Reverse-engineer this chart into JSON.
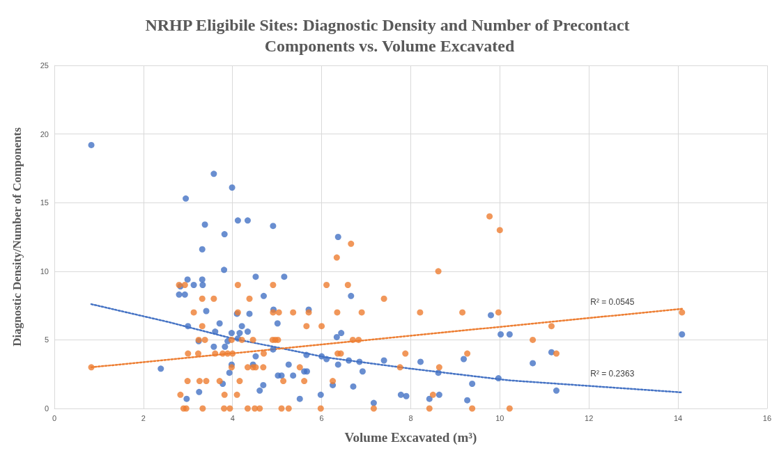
{
  "chart_data": {
    "type": "scatter",
    "title": "NRHP Eligibile Sites: Diagnostic Density and Number of Precontact Components vs. Volume Excavated",
    "xlabel": "Volume Excavated (m³)",
    "ylabel": "Diagnostic Density/Number of Components",
    "xlim": [
      0,
      16
    ],
    "xticks": [
      0,
      2,
      4,
      6,
      8,
      10,
      12,
      14,
      16
    ],
    "ylim": [
      0,
      25
    ],
    "yticks": [
      0,
      5,
      10,
      15,
      20,
      25
    ],
    "grid": true,
    "marker": "circle",
    "series": [
      {
        "color": "#4472c4",
        "x": [
          0.83,
          2.39,
          3.58,
          3.99,
          2.95,
          3.38,
          4.12,
          4.34,
          4.91,
          3.82,
          3.32,
          6.37,
          3.81,
          4.52,
          5.16,
          2.99,
          3.32,
          2.83,
          3.13,
          3.33,
          2.8,
          2.93,
          4.7,
          4.92,
          5.71,
          3.41,
          4.38,
          4.1,
          6.34,
          6.44,
          3.71,
          5.01,
          3.0,
          4.21,
          3.61,
          3.98,
          4.16,
          4.34,
          4.12,
          3.24,
          3.89,
          3.58,
          3.83,
          4.91,
          4.52,
          5.66,
          6.0,
          6.11,
          6.37,
          3.98,
          4.46,
          5.26,
          5.61,
          5.67,
          5.02,
          5.1,
          5.36,
          3.93,
          3.78,
          6.25,
          4.69,
          4.61,
          3.25,
          2.97,
          5.51,
          5.98,
          6.66,
          9.8,
          10.02,
          10.22,
          6.61,
          6.85,
          6.92,
          7.4,
          6.71,
          7.17,
          7.78,
          7.9,
          8.22,
          8.42,
          8.64,
          8.62,
          9.19,
          9.27,
          9.38,
          9.97,
          10.74,
          11.16,
          11.27,
          14.09
        ],
        "values": [
          19.2,
          2.9,
          17.1,
          16.1,
          15.3,
          13.4,
          13.7,
          13.7,
          13.3,
          12.7,
          11.6,
          12.5,
          10.1,
          9.6,
          9.6,
          9.4,
          9.4,
          8.9,
          9.0,
          9.0,
          8.3,
          8.3,
          8.2,
          7.2,
          7.2,
          7.1,
          6.9,
          6.9,
          5.2,
          5.5,
          6.2,
          6.2,
          6.0,
          6.0,
          5.6,
          5.5,
          5.5,
          5.6,
          5.1,
          4.9,
          4.9,
          4.5,
          4.5,
          4.3,
          3.8,
          3.9,
          3.8,
          3.6,
          3.2,
          3.2,
          3.2,
          3.2,
          2.7,
          2.7,
          2.4,
          2.4,
          2.4,
          2.6,
          1.8,
          1.7,
          1.7,
          1.3,
          1.2,
          0.7,
          0.7,
          1.0,
          8.2,
          6.8,
          5.4,
          5.4,
          3.5,
          3.4,
          2.7,
          3.5,
          1.6,
          0.4,
          1.0,
          0.9,
          3.4,
          0.7,
          1.0,
          2.6,
          3.6,
          0.6,
          1.8,
          2.2,
          3.3,
          4.1,
          1.3,
          5.4
        ]
      },
      {
        "color": "#ed7d31",
        "x": [
          0.83,
          2.8,
          2.93,
          4.12,
          4.91,
          6.11,
          6.34,
          3.32,
          3.58,
          4.38,
          3.13,
          4.12,
          4.91,
          5.04,
          5.36,
          5.71,
          6.35,
          3.32,
          5.66,
          6.0,
          3.24,
          3.38,
          3.98,
          4.21,
          4.46,
          4.9,
          4.96,
          5.02,
          3.0,
          3.23,
          3.61,
          3.78,
          3.89,
          4.0,
          4.7,
          6.36,
          6.43,
          3.98,
          4.34,
          4.46,
          4.52,
          4.69,
          5.51,
          2.99,
          3.26,
          3.41,
          3.71,
          4.16,
          5.14,
          5.61,
          6.25,
          2.83,
          3.82,
          4.1,
          2.9,
          2.96,
          3.33,
          3.81,
          3.94,
          4.34,
          4.5,
          4.61,
          5.1,
          5.26,
          5.98,
          6.66,
          10.0,
          9.77,
          8.62,
          6.59,
          7.4,
          6.9,
          8.21,
          9.16,
          9.97,
          6.7,
          6.83,
          7.88,
          9.27,
          7.76,
          8.64,
          8.5,
          7.17,
          8.42,
          9.38,
          10.22,
          10.74,
          11.16,
          11.27,
          14.09
        ],
        "values": [
          3,
          9,
          9,
          9,
          9,
          9,
          11,
          8,
          8,
          8,
          7,
          7,
          7,
          7,
          7,
          7,
          7,
          6,
          6,
          6,
          5,
          5,
          5,
          5,
          5,
          5,
          5,
          5,
          4,
          4,
          4,
          4,
          4,
          4,
          4,
          4,
          4,
          3,
          3,
          3,
          3,
          3,
          3,
          2,
          2,
          2,
          2,
          2,
          2,
          2,
          2,
          1,
          1,
          1,
          0,
          0,
          0,
          0,
          0,
          0,
          0,
          0,
          0,
          0,
          0,
          12,
          13,
          14,
          10,
          9,
          8,
          7,
          7,
          7,
          7,
          5,
          5,
          4,
          4,
          3,
          3,
          1,
          0,
          0,
          0,
          0,
          5,
          6,
          4,
          7
        ]
      },
      {
        "type": "line",
        "color": "#4472c4",
        "line_style": "dotted",
        "marker": "none",
        "x": [
          0.83,
          2.56,
          4,
          6.14,
          8,
          10.2,
          14.09
        ],
        "values": [
          7.6,
          6.3,
          5.1,
          3.7,
          2.9,
          2.05,
          1.17
        ]
      },
      {
        "type": "line",
        "color": "#ed7d31",
        "line_style": "dotted",
        "marker": "none",
        "x": [
          0.83,
          14.09
        ],
        "values": [
          3.0,
          7.26
        ]
      }
    ],
    "annotations": [
      "R² = 0.2363",
      "R² = 0.0545"
    ]
  }
}
